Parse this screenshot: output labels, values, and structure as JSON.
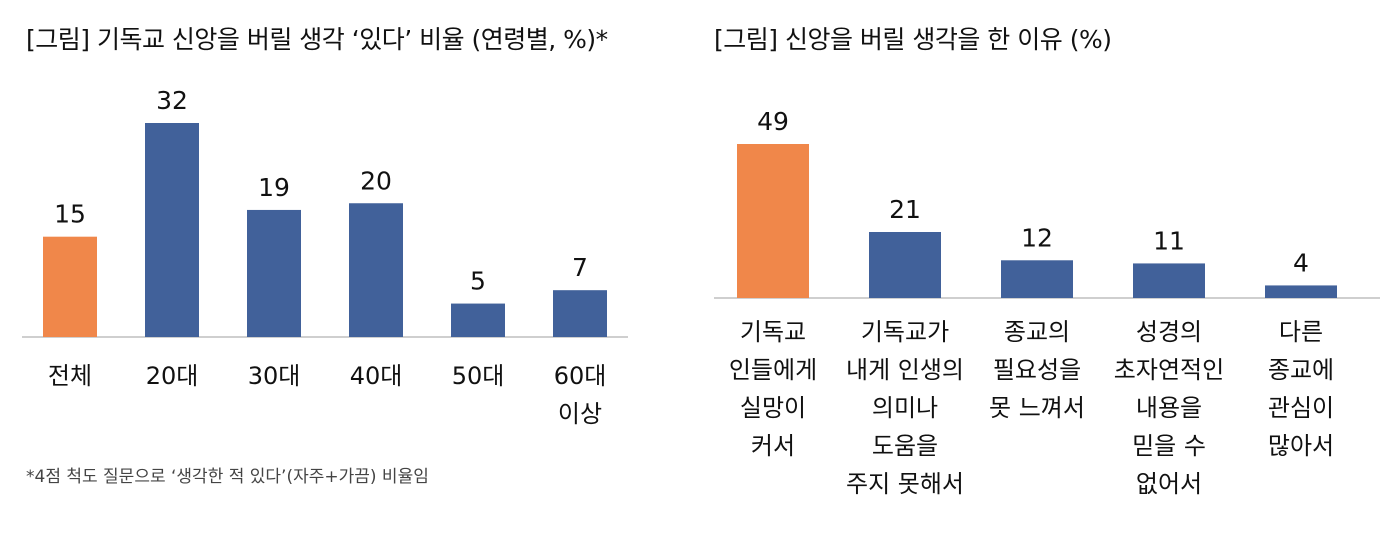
{
  "chart_data": [
    {
      "type": "bar",
      "title": "[그림] 기독교 신앙을 버릴 생각 ‘있다’ 비율 (연령별, %)*",
      "categories": [
        [
          "전체"
        ],
        [
          "20대"
        ],
        [
          "30대"
        ],
        [
          "40대"
        ],
        [
          "50대"
        ],
        [
          "60대",
          "이상"
        ]
      ],
      "values": [
        15,
        32,
        19,
        20,
        5,
        7
      ],
      "highlight_index": 0,
      "ylim": [
        0,
        35
      ],
      "footnote": "*4점 척도 질문으로 ‘생각한 적 있다’(자주+가끔) 비율임",
      "colors": {
        "highlight": "#F0874A",
        "bar": "#41619A",
        "axis": "#BFBFBF"
      }
    },
    {
      "type": "bar",
      "title": "[그림] 신앙을 버릴 생각을 한 이유 (%)",
      "categories": [
        [
          "기독교",
          "인들에게",
          "실망이",
          "커서"
        ],
        [
          "기독교가",
          "내게 인생의",
          "의미나",
          "도움을",
          "주지 못해서"
        ],
        [
          "종교의",
          "필요성을",
          "못 느껴서"
        ],
        [
          "성경의",
          "초자연적인",
          "내용을",
          "믿을 수",
          "없어서"
        ],
        [
          "다른",
          "종교에",
          "관심이",
          "많아서"
        ]
      ],
      "values": [
        49,
        21,
        12,
        11,
        4
      ],
      "highlight_index": 0,
      "ylim": [
        0,
        55
      ],
      "colors": {
        "highlight": "#F0874A",
        "bar": "#41619A",
        "axis": "#BFBFBF"
      }
    }
  ]
}
